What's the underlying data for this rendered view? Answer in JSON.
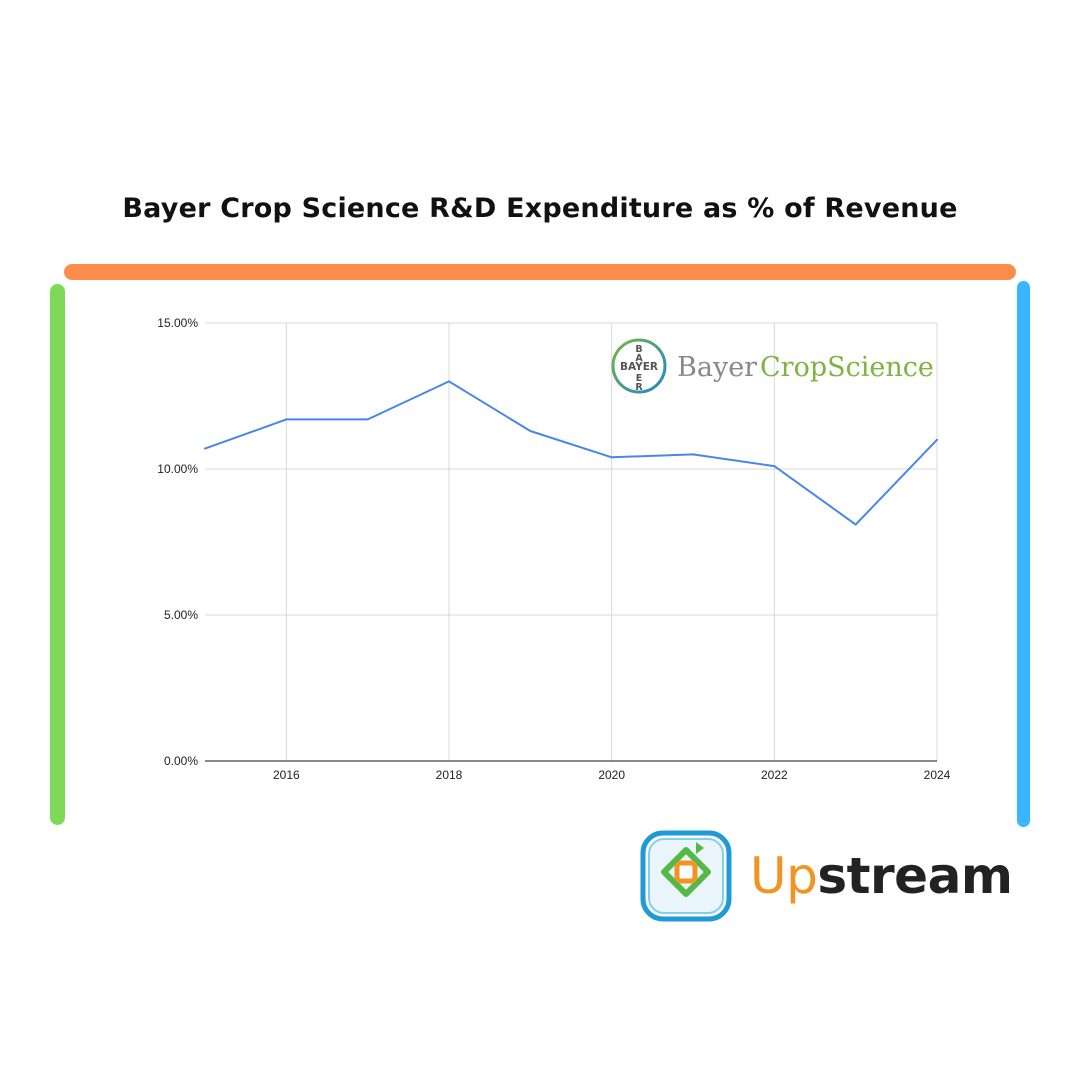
{
  "title": "Bayer Crop Science R&D Expenditure as % of Revenue",
  "colors": {
    "line": "#4a86e8",
    "top_bar": "#ff8c4b",
    "left_bar": "#7ed957",
    "right_bar": "#38b6ff",
    "grid": "#d9d9d9",
    "axis": "#444444"
  },
  "bayer_logo": {
    "cross_text": "BAYER",
    "word_bayer": "Bayer",
    "word_cropscience": "CropScience",
    "colors": {
      "bayer": "#888888",
      "cropscience": "#7cb342"
    }
  },
  "upstream_logo": {
    "part1": "Up",
    "part2": "stream",
    "icon": "upstream-loop-icon"
  },
  "chart_data": {
    "type": "line",
    "title": "",
    "xlabel": "",
    "ylabel": "",
    "x": [
      2015,
      2016,
      2017,
      2018,
      2019,
      2020,
      2021,
      2022,
      2023,
      2024
    ],
    "series": [
      {
        "values": [
          10.7,
          11.7,
          11.7,
          13.0,
          11.3,
          10.4,
          10.5,
          10.1,
          8.1,
          11.0
        ]
      }
    ],
    "xlim": [
      2015,
      2024
    ],
    "ylim": [
      0,
      15
    ],
    "xticks": [
      2016,
      2018,
      2020,
      2022,
      2024
    ],
    "xtick_labels": [
      "2016",
      "2018",
      "2020",
      "2022",
      "2024"
    ],
    "yticks": [
      0,
      5,
      10,
      15
    ],
    "ytick_labels": [
      "0.00%",
      "5.00%",
      "10.00%",
      "15.00%"
    ],
    "grid": true,
    "legend": "none"
  }
}
